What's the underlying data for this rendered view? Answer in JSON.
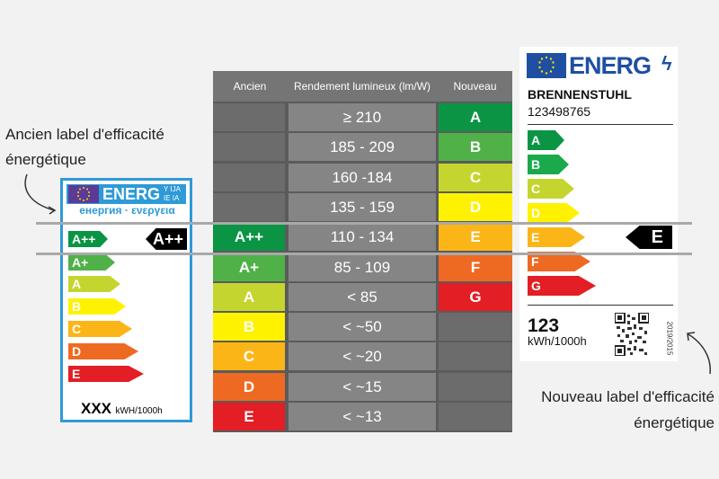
{
  "captions": {
    "old_line1": "Ancien label d'efficacité",
    "old_line2": "énergétique",
    "new_line1": "Nouveau label d'efficacité",
    "new_line2": "énergétique"
  },
  "table": {
    "headers": [
      "Ancien",
      "Rendement lumineux (lm/W)",
      "Nouveau"
    ],
    "rows": [
      {
        "old": "",
        "range": "≥ 210",
        "new": "A",
        "old_color": "",
        "new_color": "#0b9444"
      },
      {
        "old": "",
        "range": "185 - 209",
        "new": "B",
        "old_color": "",
        "new_color": "#50b149"
      },
      {
        "old": "",
        "range": "160 -184",
        "new": "C",
        "old_color": "",
        "new_color": "#c5d52f"
      },
      {
        "old": "",
        "range": "135 - 159",
        "new": "D",
        "old_color": "",
        "new_color": "#fff200"
      },
      {
        "old": "A++",
        "range": "110 - 134",
        "new": "E",
        "old_color": "#0b9444",
        "new_color": "#fbb517"
      },
      {
        "old": "A+",
        "range": "85 - 109",
        "new": "F",
        "old_color": "#50b149",
        "new_color": "#ee6a23"
      },
      {
        "old": "A",
        "range": "< 85",
        "new": "G",
        "old_color": "#c5d52f",
        "new_color": "#e31e24"
      },
      {
        "old": "B",
        "range": "< ~50",
        "new": "",
        "old_color": "#fff200",
        "new_color": ""
      },
      {
        "old": "C",
        "range": "< ~20",
        "new": "",
        "old_color": "#fbb517",
        "new_color": ""
      },
      {
        "old": "D",
        "range": "< ~15",
        "new": "",
        "old_color": "#ee6a23",
        "new_color": ""
      },
      {
        "old": "E",
        "range": "< ~13",
        "new": "",
        "old_color": "#e31e24",
        "new_color": ""
      }
    ]
  },
  "old_label": {
    "energ": "ENERG",
    "langs_top": "Y IJA",
    "langs_bottom": "IE IA",
    "subtitle": "енергия · ενεργεια",
    "classes": [
      "A++",
      "A+",
      "A",
      "B",
      "C",
      "D",
      "E"
    ],
    "selected": "A++",
    "consumption_value": "XXX",
    "consumption_unit": "kWH/1000h"
  },
  "new_label": {
    "energ": "ENERG",
    "brand": "BRENNENSTUHL",
    "model": "123498765",
    "classes": [
      "A",
      "B",
      "C",
      "D",
      "E",
      "F",
      "G"
    ],
    "selected": "E",
    "consumption_value": "123",
    "consumption_unit": "kWh/1000h",
    "regulation": "2019/2015"
  },
  "colors": {
    "A": "#0b9444",
    "B": "#50b149",
    "C": "#c5d52f",
    "D": "#fff200",
    "E": "#fbb517",
    "F": "#ee6a23",
    "G": "#e31e24",
    "frame_blue": "#2e9ad7",
    "eu_blue": "#1f4fa3"
  }
}
